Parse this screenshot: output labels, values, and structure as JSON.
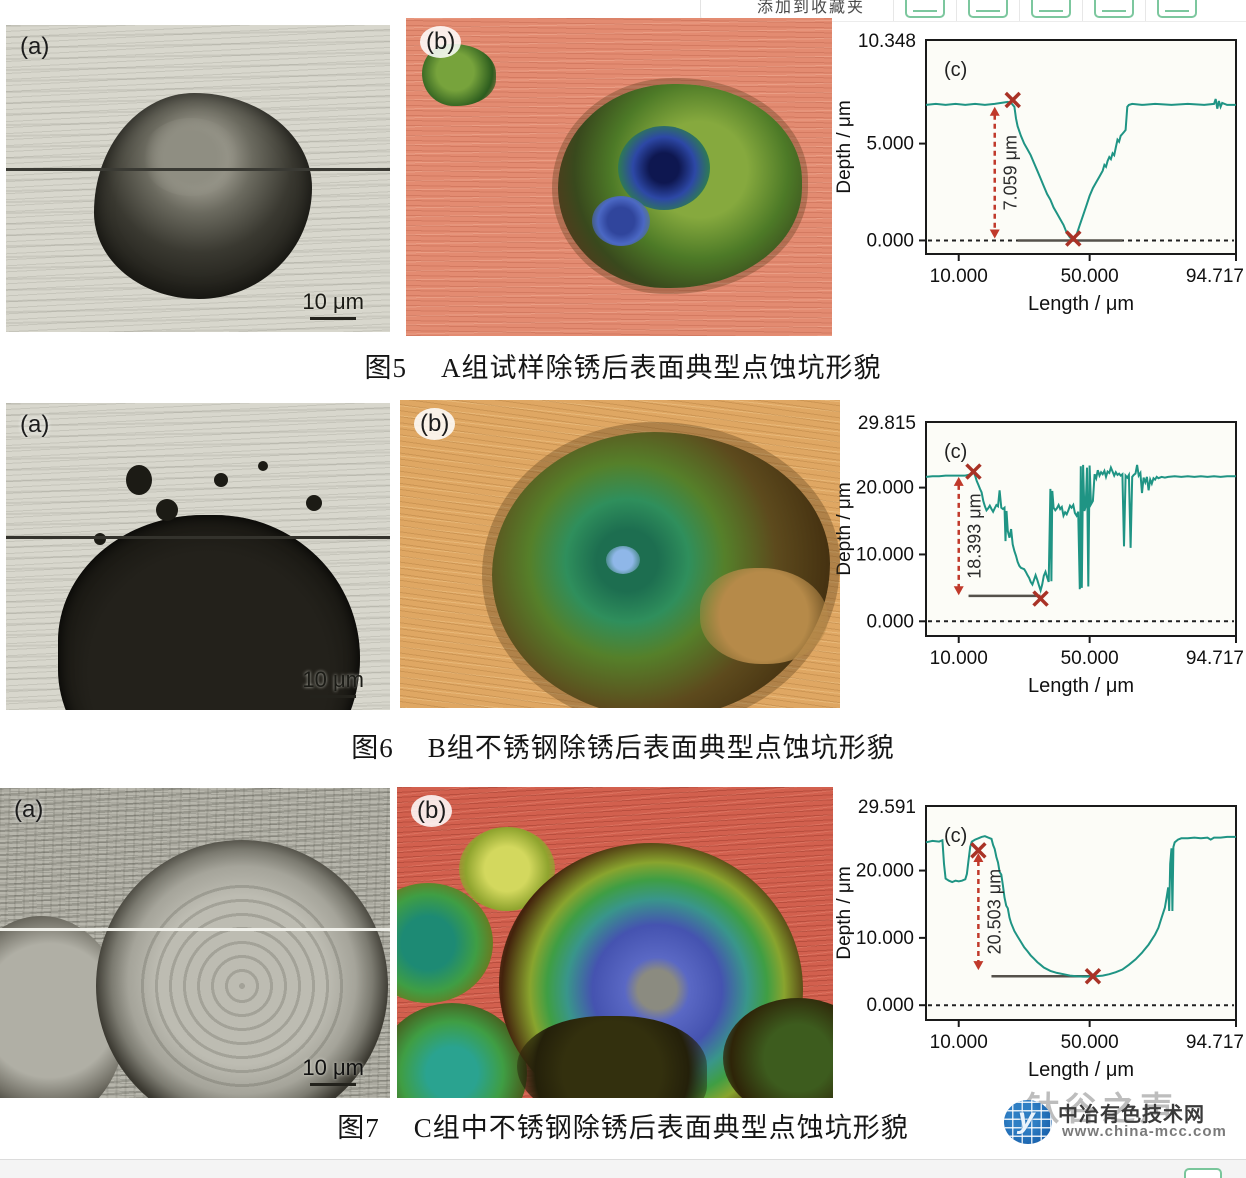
{
  "toolbar": {
    "label": "添加到收藏夹",
    "icons": [
      "card-icon",
      "share-arrows-icon",
      "home-icon",
      "frame-icon",
      "wave-icon"
    ]
  },
  "figures": [
    {
      "panel_a": "(a)",
      "panel_b": "(b)",
      "panel_c": "(c)",
      "scale_bar": "10 μm",
      "caption_no": "图5",
      "caption": "A组试样除锈后表面典型点蚀坑形貌"
    },
    {
      "panel_a": "(a)",
      "panel_b": "(b)",
      "panel_c": "(c)",
      "scale_bar": "10 μm",
      "caption_no": "图6",
      "caption": "B组不锈钢除锈后表面典型点蚀坑形貌"
    },
    {
      "panel_a": "(a)",
      "panel_b": "(b)",
      "panel_c": "(c)",
      "scale_bar": "10 μm",
      "caption_no": "图7",
      "caption": "C组中不锈钢除锈后表面典型点蚀坑形貌"
    }
  ],
  "watermark": {
    "ghost": "钛谷之声",
    "site": "中冶有色技术网",
    "url": "www.china-mcc.com"
  },
  "chart_data": [
    {
      "type": "line",
      "panel_label": "(c)",
      "ylabel": "Depth / μm",
      "xlabel": "Length / μm",
      "ymax_label": "10.348",
      "yticks": [
        {
          "label": "5.000",
          "value": 5.0
        },
        {
          "label": "0.000",
          "value": 0.0
        }
      ],
      "xticks": [
        {
          "label": "10.000",
          "value": 10.0
        },
        {
          "label": "50.000",
          "value": 50.0
        },
        {
          "label": "94.717",
          "value": 94.717
        }
      ],
      "xlim": [
        0,
        94.717
      ],
      "ylim": [
        -0.7,
        10.348
      ],
      "zero_line": true,
      "line_color": "#1f9484",
      "accent": "#c0392b",
      "annotation": {
        "text": "7.059 μm",
        "x": 21,
        "y1": 0.1,
        "y2": 6.9
      },
      "markers": [
        {
          "x": 26.5,
          "y": 7.25
        },
        {
          "x": 45,
          "y": 0.1
        }
      ],
      "floor_line": {
        "x1": 28,
        "x2": 60,
        "y": 0
      },
      "points": [
        [
          0,
          7.0
        ],
        [
          3,
          7.05
        ],
        [
          6,
          7.0
        ],
        [
          9,
          7.05
        ],
        [
          12,
          7.0
        ],
        [
          15,
          7.05
        ],
        [
          18,
          7.0
        ],
        [
          21,
          7.05
        ],
        [
          23,
          7.1
        ],
        [
          25,
          7.15
        ],
        [
          26,
          7.1
        ],
        [
          27,
          6.9
        ],
        [
          27.5,
          6.3
        ],
        [
          28,
          5.9
        ],
        [
          29,
          5.4
        ],
        [
          30,
          5.0
        ],
        [
          31,
          4.7
        ],
        [
          32,
          4.4
        ],
        [
          33,
          4.0
        ],
        [
          34,
          3.6
        ],
        [
          35,
          3.2
        ],
        [
          36,
          2.8
        ],
        [
          37,
          2.4
        ],
        [
          38,
          2.1
        ],
        [
          39,
          1.7
        ],
        [
          40,
          1.4
        ],
        [
          41,
          1.1
        ],
        [
          42,
          0.8
        ],
        [
          43,
          0.4
        ],
        [
          44,
          0.15
        ],
        [
          45,
          0.05
        ],
        [
          46,
          0.3
        ],
        [
          47,
          0.8
        ],
        [
          48,
          1.3
        ],
        [
          49,
          1.8
        ],
        [
          50,
          2.3
        ],
        [
          51,
          2.7
        ],
        [
          52,
          3.0
        ],
        [
          53,
          3.3
        ],
        [
          54,
          3.6
        ],
        [
          54.5,
          3.9
        ],
        [
          55,
          3.8
        ],
        [
          55.5,
          4.1
        ],
        [
          56,
          4.3
        ],
        [
          56.5,
          4.2
        ],
        [
          57,
          4.5
        ],
        [
          57.5,
          4.4
        ],
        [
          58,
          4.8
        ],
        [
          58.5,
          5.2
        ],
        [
          59,
          5.1
        ],
        [
          59.5,
          5.4
        ],
        [
          60,
          5.5
        ],
        [
          60.5,
          5.6
        ],
        [
          61,
          5.7
        ],
        [
          61.5,
          6.9
        ],
        [
          62,
          7.0
        ],
        [
          63,
          7.05
        ],
        [
          66,
          7.0
        ],
        [
          70,
          7.05
        ],
        [
          75,
          7.0
        ],
        [
          80,
          7.05
        ],
        [
          85,
          7.0
        ],
        [
          88,
          7.05
        ],
        [
          88.5,
          7.3
        ],
        [
          89,
          6.8
        ],
        [
          89.5,
          7.2
        ],
        [
          90,
          6.9
        ],
        [
          90.5,
          7.1
        ],
        [
          92,
          7.0
        ],
        [
          94.7,
          7.0
        ]
      ]
    },
    {
      "type": "line",
      "panel_label": "(c)",
      "ylabel": "Depth / μm",
      "xlabel": "Length / μm",
      "ymax_label": "29.815",
      "yticks": [
        {
          "label": "20.000",
          "value": 20.0
        },
        {
          "label": "10.000",
          "value": 10.0
        },
        {
          "label": "0.000",
          "value": 0.0
        }
      ],
      "xticks": [
        {
          "label": "10.000",
          "value": 10.0
        },
        {
          "label": "50.000",
          "value": 50.0
        },
        {
          "label": "94.717",
          "value": 94.717
        }
      ],
      "xlim": [
        0,
        94.717
      ],
      "ylim": [
        -2.2,
        29.815
      ],
      "zero_line": true,
      "line_color": "#1f9484",
      "accent": "#c0392b",
      "annotation": {
        "text": "18.393 μm",
        "x": 10,
        "y1": 3.9,
        "y2": 21.6
      },
      "markers": [
        {
          "x": 14.5,
          "y": 22.4
        },
        {
          "x": 35,
          "y": 3.4
        }
      ],
      "floor_line": {
        "x1": 13,
        "x2": 35,
        "y": 3.8
      },
      "points": [
        [
          0,
          21.6
        ],
        [
          2,
          21.7
        ],
        [
          4,
          21.7
        ],
        [
          6,
          21.8
        ],
        [
          8,
          21.8
        ],
        [
          10,
          21.8
        ],
        [
          12,
          21.8
        ],
        [
          13,
          21.9
        ],
        [
          14,
          22.0
        ],
        [
          14.5,
          22.3
        ],
        [
          15,
          21.8
        ],
        [
          15.5,
          21.0
        ],
        [
          16,
          20.4
        ],
        [
          16.5,
          19.8
        ],
        [
          17,
          19.3
        ],
        [
          17.5,
          18.0
        ],
        [
          18,
          17.2
        ],
        [
          18.5,
          16.6
        ],
        [
          19,
          16.9
        ],
        [
          19.5,
          17.3
        ],
        [
          20,
          16.8
        ],
        [
          20.5,
          16.4
        ],
        [
          21,
          16.9
        ],
        [
          21.5,
          17.4
        ],
        [
          22,
          17.2
        ],
        [
          22.5,
          19.6
        ],
        [
          23,
          17.0
        ],
        [
          23.5,
          16.8
        ],
        [
          24,
          17.0
        ],
        [
          24.3,
          12.0
        ],
        [
          24.6,
          16.5
        ],
        [
          25,
          13.5
        ],
        [
          25.5,
          12.5
        ],
        [
          26,
          13.8
        ],
        [
          26.5,
          11.5
        ],
        [
          27,
          10.5
        ],
        [
          27.5,
          9.8
        ],
        [
          28,
          8.9
        ],
        [
          28.5,
          8.3
        ],
        [
          29,
          8.0
        ],
        [
          30,
          7.8
        ],
        [
          30.5,
          7.4
        ],
        [
          31,
          6.9
        ],
        [
          31.5,
          6.5
        ],
        [
          32,
          5.9
        ],
        [
          32.5,
          5.5
        ],
        [
          33,
          6.2
        ],
        [
          33.5,
          6.9
        ],
        [
          34,
          6.2
        ],
        [
          34.5,
          5.4
        ],
        [
          35,
          4.6
        ],
        [
          35.5,
          5.5
        ],
        [
          36,
          6.8
        ],
        [
          36.5,
          7.4
        ],
        [
          37,
          6.6
        ],
        [
          37.5,
          5.9
        ],
        [
          38,
          19.8
        ],
        [
          38.3,
          6.0
        ],
        [
          38.6,
          19.5
        ],
        [
          39,
          17.0
        ],
        [
          39.5,
          16.6
        ],
        [
          40,
          16.9
        ],
        [
          40.5,
          17.4
        ],
        [
          41,
          16.8
        ],
        [
          41.5,
          17.1
        ],
        [
          42,
          15.8
        ],
        [
          42.5,
          16.3
        ],
        [
          43,
          16.0
        ],
        [
          43.5,
          16.6
        ],
        [
          44,
          17.3
        ],
        [
          44.5,
          17.0
        ],
        [
          45,
          17.4
        ],
        [
          45.5,
          16.2
        ],
        [
          46,
          15.8
        ],
        [
          46.5,
          16.4
        ],
        [
          47,
          4.8
        ],
        [
          47.3,
          23.2
        ],
        [
          47.6,
          5.0
        ],
        [
          48,
          23.4
        ],
        [
          48.4,
          16.5
        ],
        [
          48.8,
          17.2
        ],
        [
          49.2,
          23.0
        ],
        [
          49.6,
          5.2
        ],
        [
          50,
          23.3
        ],
        [
          50.4,
          17.5
        ],
        [
          51,
          18.0
        ],
        [
          51.5,
          22.0
        ],
        [
          52,
          21.4
        ],
        [
          52.5,
          22.6
        ],
        [
          53,
          21.8
        ],
        [
          53.5,
          22.3
        ],
        [
          54,
          22.0
        ],
        [
          54.5,
          22.5
        ],
        [
          55,
          21.6
        ],
        [
          55.5,
          22.4
        ],
        [
          56,
          22.2
        ],
        [
          56.5,
          23.0
        ],
        [
          57,
          22.4
        ],
        [
          57.5,
          21.8
        ],
        [
          58,
          22.3
        ],
        [
          58.5,
          21.9
        ],
        [
          59,
          22.1
        ],
        [
          59.5,
          21.8
        ],
        [
          60,
          22.0
        ],
        [
          60.5,
          11.2
        ],
        [
          61,
          21.8
        ],
        [
          61.5,
          21.5
        ],
        [
          62,
          21.9
        ],
        [
          62.5,
          11.0
        ],
        [
          63,
          21.6
        ],
        [
          63.5,
          21.9
        ],
        [
          64,
          22.1
        ],
        [
          64.5,
          23.4
        ],
        [
          65,
          21.8
        ],
        [
          65.5,
          22.2
        ],
        [
          66,
          19.2
        ],
        [
          66.5,
          21.5
        ],
        [
          67,
          20.8
        ],
        [
          67.5,
          21.6
        ],
        [
          68,
          19.6
        ],
        [
          68.5,
          21.2
        ],
        [
          69,
          20.6
        ],
        [
          69.5,
          21.4
        ],
        [
          70,
          21.2
        ],
        [
          70.5,
          21.6
        ],
        [
          71,
          21.4
        ],
        [
          72,
          21.6
        ],
        [
          73,
          21.5
        ],
        [
          74,
          21.6
        ],
        [
          76,
          21.7
        ],
        [
          78,
          21.6
        ],
        [
          80,
          21.7
        ],
        [
          82,
          21.6
        ],
        [
          84,
          21.7
        ],
        [
          86,
          21.6
        ],
        [
          88,
          21.7
        ],
        [
          90,
          21.6
        ],
        [
          92,
          21.7
        ],
        [
          94.7,
          21.7
        ]
      ]
    },
    {
      "type": "line",
      "panel_label": "(c)",
      "ylabel": "Depth / μm",
      "xlabel": "Length / μm",
      "ymax_label": "29.591",
      "yticks": [
        {
          "label": "20.000",
          "value": 20.0
        },
        {
          "label": "10.000",
          "value": 10.0
        },
        {
          "label": "0.000",
          "value": 0.0
        }
      ],
      "xticks": [
        {
          "label": "10.000",
          "value": 10.0
        },
        {
          "label": "50.000",
          "value": 50.0
        },
        {
          "label": "94.717",
          "value": 94.717
        }
      ],
      "xlim": [
        0,
        94.717
      ],
      "ylim": [
        -2.2,
        29.591
      ],
      "zero_line": true,
      "line_color": "#1f9484",
      "accent": "#c0392b",
      "annotation": {
        "text": "20.503 μm",
        "x": 16,
        "y1": 5.2,
        "y2": 22.6
      },
      "markers": [
        {
          "x": 16,
          "y": 23.0
        },
        {
          "x": 51,
          "y": 4.3
        }
      ],
      "floor_line": {
        "x1": 20,
        "x2": 51,
        "y": 4.3
      },
      "points": [
        [
          0,
          24.2
        ],
        [
          2,
          24.4
        ],
        [
          4,
          24.3
        ],
        [
          5,
          24.5
        ],
        [
          5.5,
          21.0
        ],
        [
          6,
          18.8
        ],
        [
          7,
          18.5
        ],
        [
          8,
          18.3
        ],
        [
          9,
          18.5
        ],
        [
          10,
          18.4
        ],
        [
          11,
          18.5
        ],
        [
          12,
          18.7
        ],
        [
          12.5,
          19.5
        ],
        [
          13,
          21.5
        ],
        [
          13.5,
          23.5
        ],
        [
          14,
          24.3
        ],
        [
          15,
          24.6
        ],
        [
          16,
          24.8
        ],
        [
          17,
          25.0
        ],
        [
          18,
          25.1
        ],
        [
          19,
          24.9
        ],
        [
          20,
          24.7
        ],
        [
          20.5,
          23.8
        ],
        [
          21,
          23.2
        ],
        [
          21.5,
          22.0
        ],
        [
          22,
          21.2
        ],
        [
          22.5,
          19.8
        ],
        [
          23,
          19.4
        ],
        [
          23.5,
          17.8
        ],
        [
          24,
          16.0
        ],
        [
          24.5,
          14.8
        ],
        [
          25,
          14.4
        ],
        [
          25.5,
          13.0
        ],
        [
          26,
          12.2
        ],
        [
          27,
          11.0
        ],
        [
          28,
          10.2
        ],
        [
          29,
          9.4
        ],
        [
          30,
          8.6
        ],
        [
          31,
          8.0
        ],
        [
          32,
          7.4
        ],
        [
          33,
          6.9
        ],
        [
          34,
          6.4
        ],
        [
          35,
          6.0
        ],
        [
          36,
          5.6
        ],
        [
          38,
          5.1
        ],
        [
          40,
          4.8
        ],
        [
          42,
          4.6
        ],
        [
          44,
          4.4
        ],
        [
          46,
          4.3
        ],
        [
          48,
          4.25
        ],
        [
          50,
          4.25
        ],
        [
          52,
          4.3
        ],
        [
          54,
          4.4
        ],
        [
          56,
          4.6
        ],
        [
          58,
          4.9
        ],
        [
          60,
          5.3
        ],
        [
          62,
          6.0
        ],
        [
          64,
          6.8
        ],
        [
          66,
          7.8
        ],
        [
          68,
          9.0
        ],
        [
          70,
          10.5
        ],
        [
          71,
          11.5
        ],
        [
          72,
          13.0
        ],
        [
          73,
          14.5
        ],
        [
          73.5,
          16.0
        ],
        [
          74,
          17.5
        ],
        [
          74.3,
          14.0
        ],
        [
          74.6,
          21.0
        ],
        [
          75,
          23.3
        ],
        [
          75.3,
          14.0
        ],
        [
          75.6,
          23.5
        ],
        [
          76,
          24.2
        ],
        [
          77,
          24.6
        ],
        [
          78,
          24.8
        ],
        [
          80,
          24.8
        ],
        [
          82,
          24.9
        ],
        [
          84,
          24.8
        ],
        [
          86,
          24.9
        ],
        [
          87,
          24.6
        ],
        [
          88,
          24.9
        ],
        [
          90,
          24.9
        ],
        [
          92,
          25.0
        ],
        [
          94.7,
          25.0
        ]
      ]
    }
  ]
}
